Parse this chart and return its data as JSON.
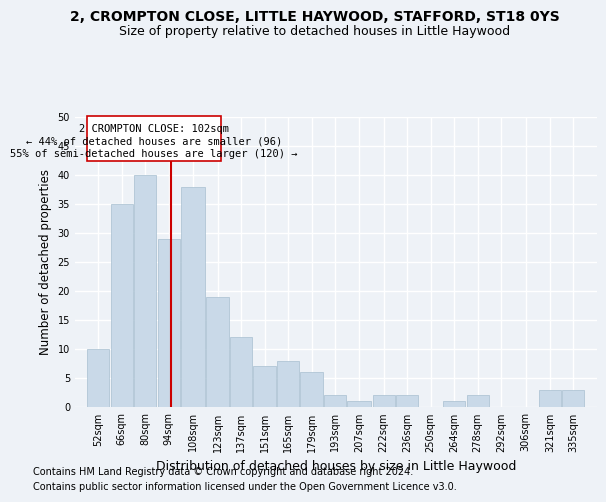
{
  "title_line1": "2, CROMPTON CLOSE, LITTLE HAYWOOD, STAFFORD, ST18 0YS",
  "title_line2": "Size of property relative to detached houses in Little Haywood",
  "xlabel": "Distribution of detached houses by size in Little Haywood",
  "ylabel": "Number of detached properties",
  "footer_line1": "Contains HM Land Registry data © Crown copyright and database right 2024.",
  "footer_line2": "Contains public sector information licensed under the Open Government Licence v3.0.",
  "annotation_line1": "2 CROMPTON CLOSE: 102sqm",
  "annotation_line2": "← 44% of detached houses are smaller (96)",
  "annotation_line3": "55% of semi-detached houses are larger (120) →",
  "property_size": 102,
  "bar_left_edges": [
    52,
    66,
    80,
    94,
    108,
    123,
    137,
    151,
    165,
    179,
    193,
    207,
    222,
    236,
    250,
    264,
    278,
    292,
    306,
    321,
    335
  ],
  "bar_widths": [
    14,
    14,
    14,
    14,
    15,
    14,
    14,
    14,
    14,
    14,
    14,
    15,
    14,
    14,
    14,
    14,
    14,
    14,
    15,
    14,
    14
  ],
  "bar_heights": [
    10,
    35,
    40,
    29,
    38,
    19,
    12,
    7,
    8,
    6,
    2,
    1,
    2,
    2,
    0,
    1,
    2,
    0,
    0,
    3,
    3
  ],
  "bar_color": "#c9d9e8",
  "bar_edge_color": "#a8bfd0",
  "vline_x": 102,
  "vline_color": "#cc0000",
  "ylim": [
    0,
    50
  ],
  "yticks": [
    0,
    5,
    10,
    15,
    20,
    25,
    30,
    35,
    40,
    45,
    50
  ],
  "xlim": [
    45,
    356
  ],
  "bg_color": "#eef2f7",
  "grid_color": "#ffffff",
  "annotation_box_color": "#cc0000",
  "title1_fontsize": 10,
  "title2_fontsize": 9,
  "xlabel_fontsize": 9,
  "ylabel_fontsize": 8.5,
  "tick_fontsize": 7,
  "footer_fontsize": 7,
  "annotation_fontsize": 7.5
}
